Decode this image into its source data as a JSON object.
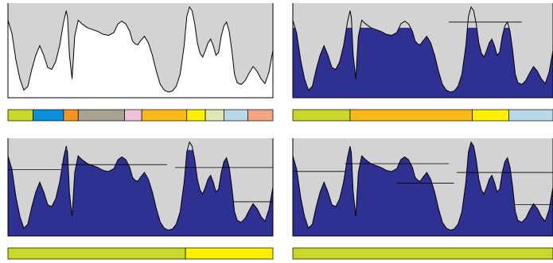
{
  "figure": {
    "description_free": true,
    "colors": {
      "terrain_fill": "#d3d3d3",
      "terrain_stroke": "#000000",
      "water_fill": "#2e3192",
      "segment_colors": {
        "lime": "#c9d82b",
        "blue": "#0a90d8",
        "orange": "#f7931e",
        "taupe": "#a8a291",
        "pink": "#f1c1d9",
        "amber": "#fbb917",
        "yellow": "#ffef00",
        "pale_green": "#dfe7b5",
        "light_blue": "#b9d9ea",
        "salmon": "#f4a582"
      }
    },
    "panels": [
      {
        "id": "stage-1",
        "flood_level": null,
        "segments": [
          {
            "width": 0.095,
            "color": "lime"
          },
          {
            "width": 0.115,
            "color": "blue"
          },
          {
            "width": 0.055,
            "color": "orange"
          },
          {
            "width": 0.175,
            "color": "taupe"
          },
          {
            "width": 0.065,
            "color": "pink"
          },
          {
            "width": 0.17,
            "color": "amber"
          },
          {
            "width": 0.07,
            "color": "yellow"
          },
          {
            "width": 0.07,
            "color": "pale_green"
          },
          {
            "width": 0.09,
            "color": "light_blue"
          },
          {
            "width": 0.095,
            "color": "salmon"
          }
        ]
      },
      {
        "id": "stage-2",
        "flood_level": "low",
        "segments": [
          {
            "width": 0.22,
            "color": "lime"
          },
          {
            "width": 0.47,
            "color": "amber"
          },
          {
            "width": 0.14,
            "color": "yellow"
          },
          {
            "width": 0.17,
            "color": "light_blue"
          }
        ]
      },
      {
        "id": "stage-3",
        "flood_level": "medium",
        "segments": [
          {
            "width": 0.67,
            "color": "lime"
          },
          {
            "width": 0.33,
            "color": "yellow"
          }
        ]
      },
      {
        "id": "stage-4",
        "flood_level": "high",
        "segments": [
          {
            "width": 1.0,
            "color": "lime"
          }
        ]
      }
    ]
  }
}
